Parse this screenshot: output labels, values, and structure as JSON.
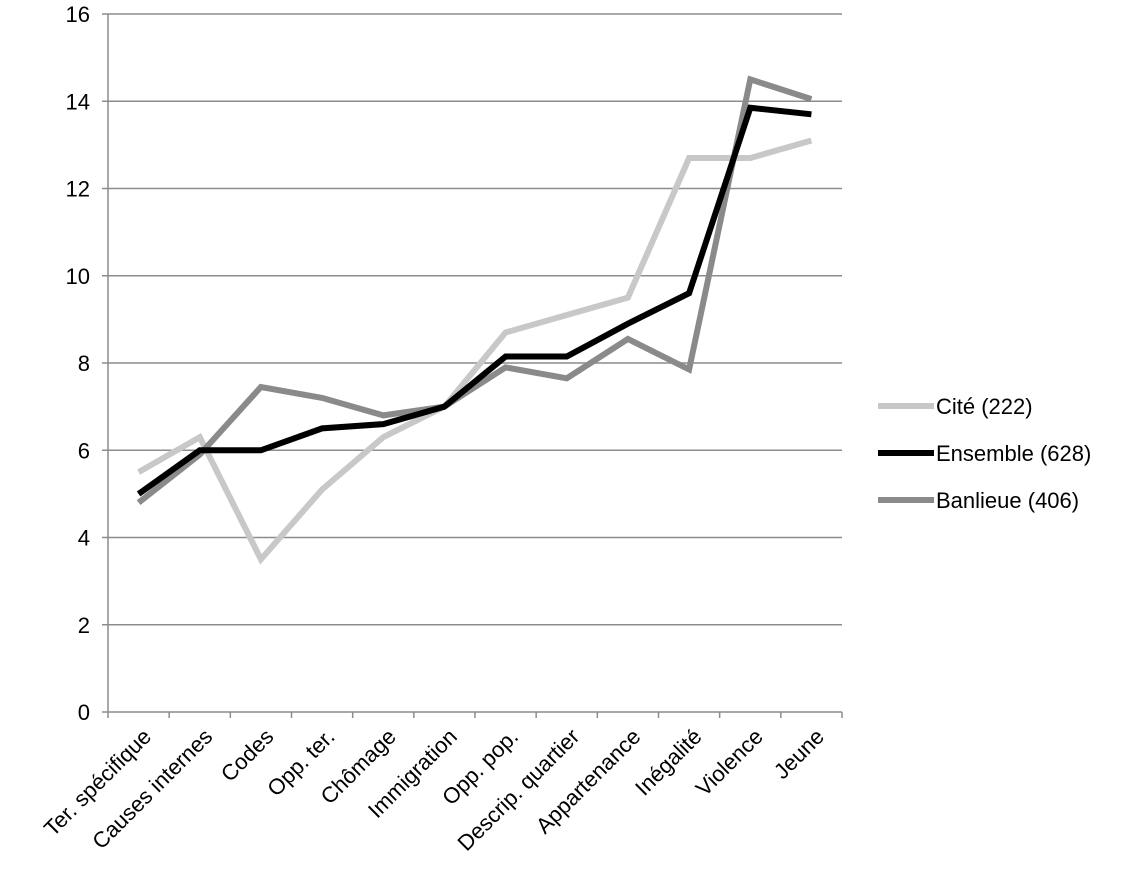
{
  "chart_data": {
    "type": "line",
    "title": "",
    "xlabel": "",
    "ylabel": "",
    "ylim": [
      0,
      16
    ],
    "y_ticks": [
      0,
      2,
      4,
      6,
      8,
      10,
      12,
      14,
      16
    ],
    "grid": "horizontal",
    "legend_position": "right",
    "categories": [
      "Ter. spécifique",
      "Causes internes",
      "Codes",
      "Opp. ter.",
      "Chômage",
      "Immigration",
      "Opp. pop.",
      "Descrip. quartier",
      "Appartenance",
      "Inégalité",
      "Violence",
      "Jeune"
    ],
    "series": [
      {
        "name": "Cité (222)",
        "color": "#c8c8c8",
        "values": [
          5.5,
          6.3,
          3.5,
          5.1,
          6.3,
          7.0,
          8.7,
          9.1,
          9.5,
          12.7,
          12.7,
          13.1
        ]
      },
      {
        "name": "Ensemble (628)",
        "color": "#000000",
        "values": [
          5.0,
          6.0,
          6.0,
          6.5,
          6.6,
          7.0,
          8.15,
          8.15,
          8.9,
          9.6,
          13.85,
          13.7
        ]
      },
      {
        "name": "Banlieue (406)",
        "color": "#8a8a8a",
        "values": [
          4.8,
          5.9,
          7.45,
          7.2,
          6.8,
          7.0,
          7.9,
          7.65,
          8.55,
          7.85,
          14.5,
          14.05
        ]
      }
    ]
  }
}
